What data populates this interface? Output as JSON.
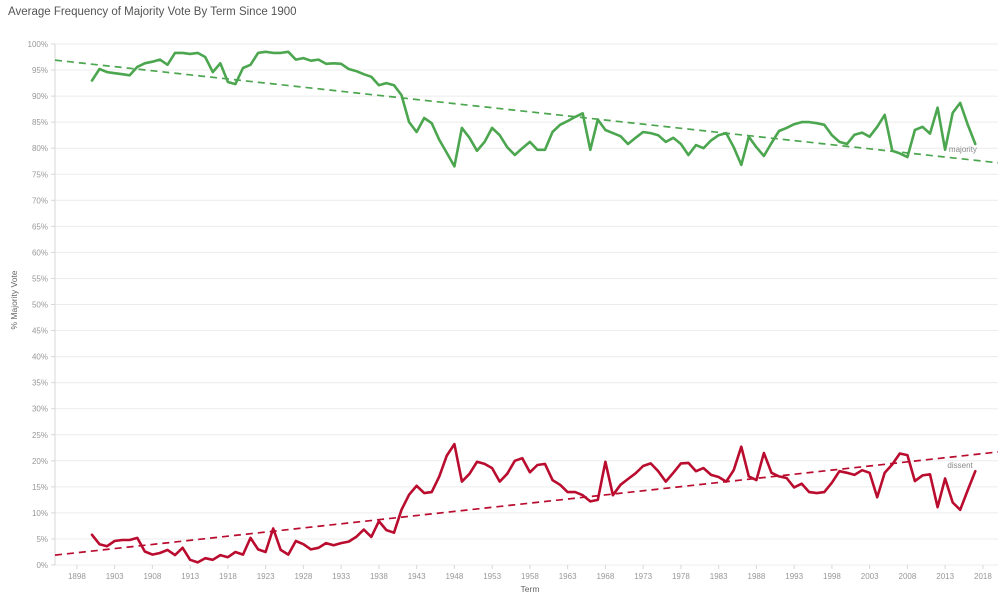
{
  "chart_data": {
    "type": "line",
    "title": "Average Frequency of Majority Vote By Term Since 1900",
    "xlabel": "Term",
    "ylabel": "% Majority Vote",
    "grid": "horizontal",
    "legend_position": "line-end-labels",
    "xlim": [
      1895.1,
      2020
    ],
    "ylim": [
      0,
      100
    ],
    "x_ticks": [
      1898,
      1903,
      1908,
      1913,
      1918,
      1923,
      1928,
      1933,
      1938,
      1943,
      1948,
      1953,
      1958,
      1963,
      1968,
      1973,
      1978,
      1983,
      1988,
      1993,
      1998,
      2003,
      2008,
      2013,
      2018
    ],
    "y_ticks": [
      0,
      5,
      10,
      15,
      20,
      25,
      30,
      35,
      40,
      45,
      50,
      55,
      60,
      65,
      70,
      75,
      80,
      85,
      90,
      95,
      100
    ],
    "y_tick_suffix": "%",
    "x": [
      1900,
      1901,
      1902,
      1903,
      1904,
      1905,
      1906,
      1907,
      1908,
      1909,
      1910,
      1911,
      1912,
      1913,
      1914,
      1915,
      1916,
      1917,
      1918,
      1919,
      1920,
      1921,
      1922,
      1923,
      1924,
      1925,
      1926,
      1927,
      1928,
      1929,
      1930,
      1931,
      1932,
      1933,
      1934,
      1935,
      1936,
      1937,
      1938,
      1939,
      1940,
      1941,
      1942,
      1943,
      1944,
      1945,
      1946,
      1947,
      1948,
      1949,
      1950,
      1951,
      1952,
      1953,
      1954,
      1955,
      1956,
      1957,
      1958,
      1959,
      1960,
      1961,
      1962,
      1963,
      1964,
      1965,
      1966,
      1967,
      1968,
      1969,
      1970,
      1971,
      1972,
      1973,
      1974,
      1975,
      1976,
      1977,
      1978,
      1979,
      1980,
      1981,
      1982,
      1983,
      1984,
      1985,
      1986,
      1987,
      1988,
      1989,
      1990,
      1991,
      1992,
      1993,
      1994,
      1995,
      1996,
      1997,
      1998,
      1999,
      2000,
      2001,
      2002,
      2003,
      2004,
      2005,
      2006,
      2007,
      2008,
      2009,
      2010,
      2011,
      2012,
      2013,
      2014,
      2015,
      2016,
      2017
    ],
    "series": [
      {
        "name": "majority",
        "color": "#4ca64f",
        "values": [
          93,
          95.2,
          94.6,
          94.4,
          94.2,
          94,
          95.6,
          96.3,
          96.6,
          97,
          96,
          98.3,
          98.3,
          98.1,
          98.3,
          97.5,
          94.6,
          96.3,
          92.7,
          92.3,
          95.4,
          96,
          98.3,
          98.5,
          98.3,
          98.3,
          98.5,
          97,
          97.3,
          96.8,
          97,
          96.2,
          96.3,
          96.2,
          95.2,
          94.8,
          94.2,
          93.7,
          92.1,
          92.5,
          92.1,
          90.2,
          85,
          83.1,
          85.8,
          84.8,
          81.6,
          79.1,
          76.5,
          83.9,
          82,
          79.5,
          81.2,
          83.9,
          82.5,
          80.2,
          78.7,
          80,
          81.2,
          79.7,
          79.7,
          83.1,
          84.5,
          85.2,
          86,
          86.7,
          79.7,
          85.5,
          83.5,
          82.9,
          82.3,
          80.8,
          82,
          83.1,
          82.9,
          82.5,
          81.2,
          82,
          80.8,
          78.7,
          80.6,
          80,
          81.5,
          82.5,
          82.9,
          80.2,
          76.8,
          82.2,
          80.2,
          78.5,
          81,
          83.3,
          83.9,
          84.6,
          85,
          85,
          84.8,
          84.5,
          82.5,
          81.2,
          80.8,
          82.6,
          83,
          82.2,
          84.1,
          86.4,
          79.5,
          79,
          78.3,
          83.5,
          84.1,
          82.8,
          87.8,
          79.7,
          86.8,
          88.7,
          84.5,
          80.8
        ]
      },
      {
        "name": "dissent",
        "color": "#b90c2e",
        "values": [
          5.8,
          4,
          3.6,
          4.6,
          4.8,
          4.8,
          5.2,
          2.6,
          2,
          2.3,
          2.9,
          1.9,
          3.3,
          1,
          0.5,
          1.3,
          1,
          1.9,
          1.5,
          2.5,
          2,
          5.2,
          3,
          2.5,
          7,
          2.9,
          2,
          4.6,
          4,
          3,
          3.3,
          4.2,
          3.8,
          4.2,
          4.5,
          5.4,
          6.8,
          5.4,
          8.4,
          6.7,
          6.2,
          10.6,
          13.5,
          15.2,
          13.8,
          14,
          17,
          21,
          23.2,
          16,
          17.5,
          19.8,
          19.4,
          18.6,
          16,
          17.5,
          20,
          20.5,
          17.8,
          19.2,
          19.4,
          16.3,
          15.4,
          14,
          14,
          13.4,
          12.2,
          12.5,
          19.8,
          13.4,
          15.4,
          16.5,
          17.6,
          19,
          19.5,
          18,
          16,
          17.7,
          19.5,
          19.6,
          18,
          18.6,
          17.3,
          16.9,
          16,
          18.2,
          22.7,
          17,
          16.3,
          21.5,
          17.7,
          17,
          16.7,
          14.9,
          15.6,
          14,
          13.8,
          14,
          15.8,
          18,
          17.7,
          17.3,
          18.2,
          17.7,
          13,
          17.7,
          19.3,
          21.4,
          21.1,
          16.1,
          17.2,
          17.4,
          11.1,
          16.6,
          12,
          10.6,
          14.4,
          18
        ]
      }
    ],
    "trendlines": [
      {
        "series": "majority",
        "color": "#4ca64f",
        "x0": 1895.1,
        "y0": 96.9,
        "x1": 2020,
        "y1": 77.2
      },
      {
        "series": "dissent",
        "color": "#b90c2e",
        "x0": 1895.1,
        "y0": 1.9,
        "x1": 2020,
        "y1": 21.7
      }
    ],
    "end_labels": [
      {
        "text": "majority",
        "year": 2013.5,
        "value": 79.3,
        "color": "#8a8a8a"
      },
      {
        "text": "dissent",
        "year": 2013.3,
        "value": 18.6,
        "color": "#8a8a8a"
      }
    ],
    "colors": {
      "gridline": "#ececec",
      "axis": "#d7d7d7",
      "tick_label": "#989898",
      "title": "#545454",
      "axis_title": "#666666"
    }
  }
}
